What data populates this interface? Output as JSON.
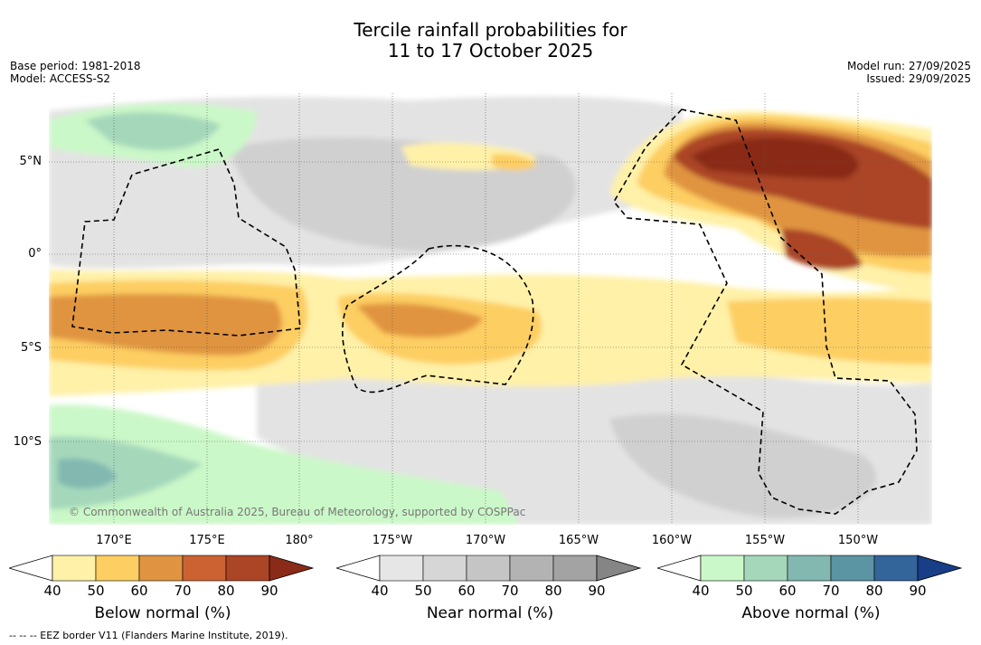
{
  "title": {
    "line1": "Tercile rainfall probabilities for",
    "line2": "11 to 17 October 2025"
  },
  "meta": {
    "base_period": "Base period: 1981-2018",
    "model": "Model: ACCESS-S2",
    "model_run": "Model run: 27/09/2025",
    "issued": "Issued: 29/09/2025"
  },
  "map": {
    "lat_labels": [
      "5°N",
      "0°",
      "5°S",
      "10°S"
    ],
    "lon_labels": [
      "170°E",
      "175°E",
      "180°",
      "175°W",
      "170°W",
      "165°W",
      "160°W",
      "155°W",
      "150°W"
    ],
    "credit": "© Commonwealth of Australia 2025, Bureau of Meteorology, supported by COSPPac"
  },
  "colorbars": [
    {
      "label": "Below normal (%)",
      "ticks": [
        "40",
        "50",
        "60",
        "70",
        "80",
        "90"
      ],
      "colors": [
        "#fff1a8",
        "#fdce62",
        "#e09441",
        "#cc6232",
        "#ab4525",
        "#8a2a18"
      ]
    },
    {
      "label": "Near normal (%)",
      "ticks": [
        "40",
        "50",
        "60",
        "70",
        "80",
        "90"
      ],
      "colors": [
        "#e6e6e6",
        "#d6d6d6",
        "#c5c5c5",
        "#b3b3b3",
        "#a3a3a3",
        "#858585"
      ]
    },
    {
      "label": "Above normal (%)",
      "ticks": [
        "40",
        "50",
        "60",
        "70",
        "80",
        "90"
      ],
      "colors": [
        "#cbf8c8",
        "#a5d8bb",
        "#82b8b0",
        "#5b94a3",
        "#33649a",
        "#173e86"
      ]
    }
  ],
  "footer": "--  --  -- EEZ border V11 (Flanders Marine Institute, 2019)."
}
